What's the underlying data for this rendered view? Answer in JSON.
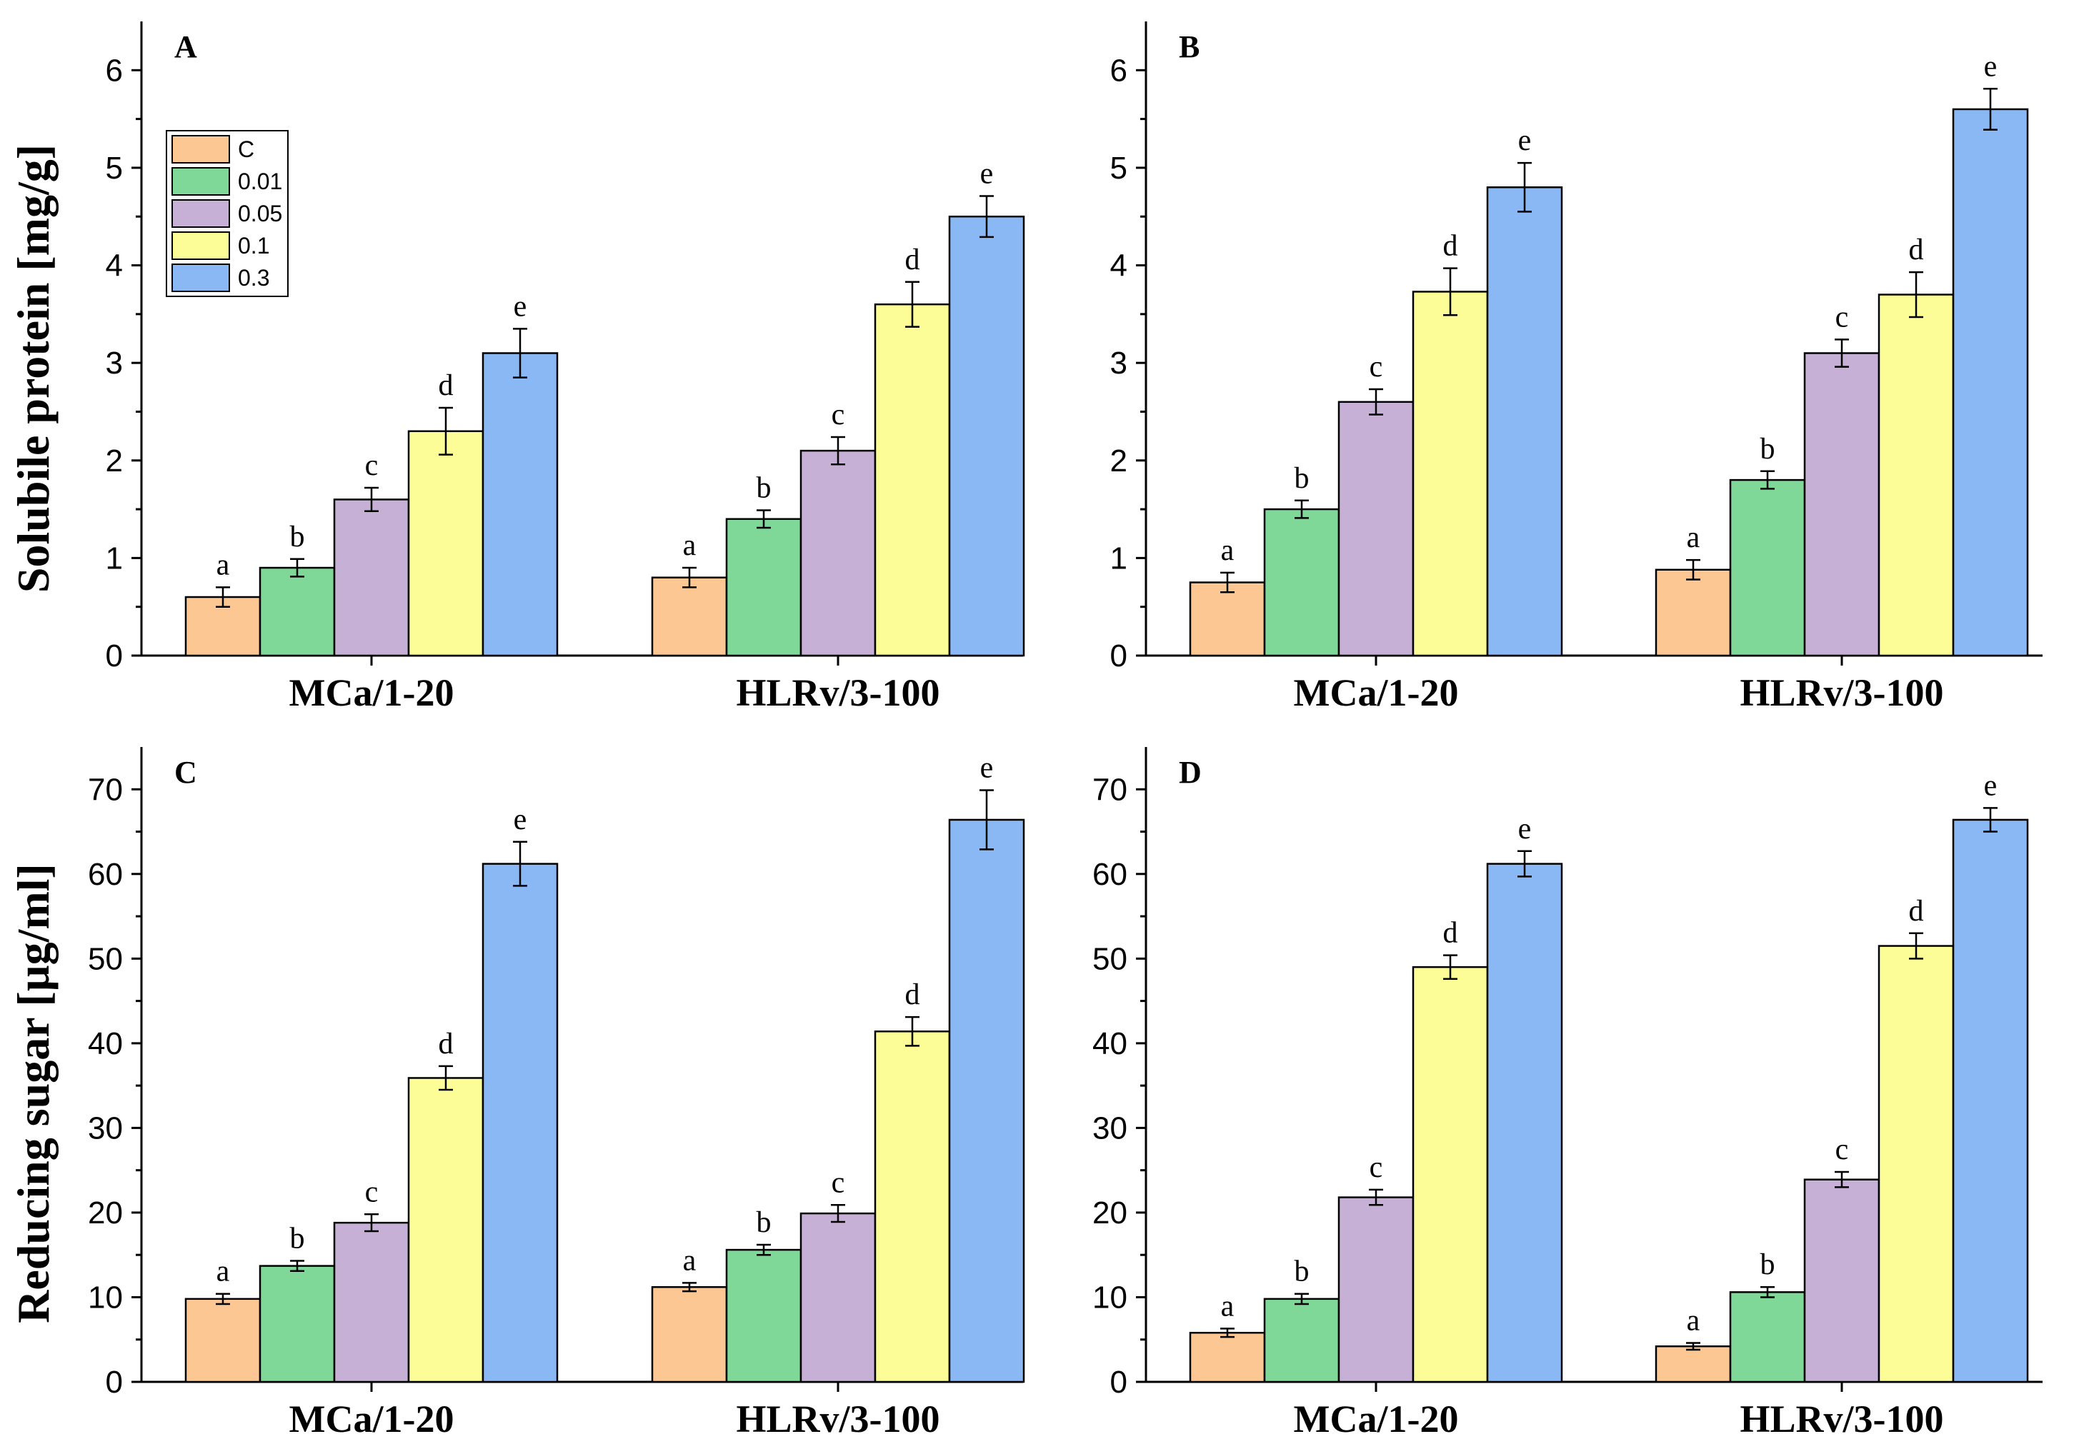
{
  "colors": {
    "C": "#fdc793",
    "0.01": "#7fd897",
    "0.05": "#c7b0d6",
    "0.1": "#fdfd98",
    "0.3": "#8ab8f5"
  },
  "legend": [
    "C",
    "0.01",
    "0.05",
    "0.1",
    "0.3"
  ],
  "ylabels": {
    "top": "Solubile protein [mg/g]",
    "bottom": "Reducing sugar [µg/ml]"
  },
  "chart_data": [
    {
      "panel": "A",
      "type": "bar",
      "ylabel": "Solubile protein [mg/g]",
      "ylim": [
        0,
        6.5
      ],
      "yticks": [
        0,
        1,
        2,
        3,
        4,
        5,
        6
      ],
      "categories": [
        "MCa/1-20",
        "HLRv/3-100"
      ],
      "series": [
        {
          "name": "C",
          "values": [
            0.6,
            0.8
          ],
          "errors": [
            0.1,
            0.1
          ],
          "letters": [
            "a",
            "a"
          ]
        },
        {
          "name": "0.01",
          "values": [
            0.9,
            1.4
          ],
          "errors": [
            0.09,
            0.09
          ],
          "letters": [
            "b",
            "b"
          ]
        },
        {
          "name": "0.05",
          "values": [
            1.6,
            2.1
          ],
          "errors": [
            0.12,
            0.14
          ],
          "letters": [
            "c",
            "c"
          ]
        },
        {
          "name": "0.1",
          "values": [
            2.3,
            3.6
          ],
          "errors": [
            0.24,
            0.23
          ],
          "letters": [
            "d",
            "d"
          ]
        },
        {
          "name": "0.3",
          "values": [
            3.1,
            4.5
          ],
          "errors": [
            0.25,
            0.21
          ],
          "letters": [
            "e",
            "e"
          ]
        }
      ]
    },
    {
      "panel": "B",
      "type": "bar",
      "ylabel": "Solubile protein [mg/g]",
      "ylim": [
        0,
        6.5
      ],
      "yticks": [
        0,
        1,
        2,
        3,
        4,
        5,
        6
      ],
      "categories": [
        "MCa/1-20",
        "HLRv/3-100"
      ],
      "series": [
        {
          "name": "C",
          "values": [
            0.75,
            0.88
          ],
          "errors": [
            0.1,
            0.1
          ],
          "letters": [
            "a",
            "a"
          ]
        },
        {
          "name": "0.01",
          "values": [
            1.5,
            1.8
          ],
          "errors": [
            0.09,
            0.09
          ],
          "letters": [
            "b",
            "b"
          ]
        },
        {
          "name": "0.05",
          "values": [
            2.6,
            3.1
          ],
          "errors": [
            0.13,
            0.14
          ],
          "letters": [
            "c",
            "c"
          ]
        },
        {
          "name": "0.1",
          "values": [
            3.73,
            3.7
          ],
          "errors": [
            0.24,
            0.23
          ],
          "letters": [
            "d",
            "d"
          ]
        },
        {
          "name": "0.3",
          "values": [
            4.8,
            5.6
          ],
          "errors": [
            0.25,
            0.21
          ],
          "letters": [
            "e",
            "e"
          ]
        }
      ]
    },
    {
      "panel": "C",
      "type": "bar",
      "ylabel": "Reducing sugar [µg/ml]",
      "ylim": [
        0,
        75
      ],
      "yticks": [
        0,
        10,
        20,
        30,
        40,
        50,
        60,
        70
      ],
      "categories": [
        "MCa/1-20",
        "HLRv/3-100"
      ],
      "series": [
        {
          "name": "C",
          "values": [
            9.8,
            11.2
          ],
          "errors": [
            0.6,
            0.5
          ],
          "letters": [
            "a",
            "a"
          ]
        },
        {
          "name": "0.01",
          "values": [
            13.7,
            15.6
          ],
          "errors": [
            0.6,
            0.6
          ],
          "letters": [
            "b",
            "b"
          ]
        },
        {
          "name": "0.05",
          "values": [
            18.8,
            19.9
          ],
          "errors": [
            1.0,
            1.0
          ],
          "letters": [
            "c",
            "c"
          ]
        },
        {
          "name": "0.1",
          "values": [
            35.9,
            41.4
          ],
          "errors": [
            1.4,
            1.7
          ],
          "letters": [
            "d",
            "d"
          ]
        },
        {
          "name": "0.3",
          "values": [
            61.2,
            66.4
          ],
          "errors": [
            2.6,
            3.5
          ],
          "letters": [
            "e",
            "e"
          ]
        }
      ]
    },
    {
      "panel": "D",
      "type": "bar",
      "ylabel": "Reducing sugar [µg/ml]",
      "ylim": [
        0,
        75
      ],
      "yticks": [
        0,
        10,
        20,
        30,
        40,
        50,
        60,
        70
      ],
      "categories": [
        "MCa/1-20",
        "HLRv/3-100"
      ],
      "series": [
        {
          "name": "C",
          "values": [
            5.8,
            4.2
          ],
          "errors": [
            0.5,
            0.4
          ],
          "letters": [
            "a",
            "a"
          ]
        },
        {
          "name": "0.01",
          "values": [
            9.8,
            10.6
          ],
          "errors": [
            0.6,
            0.6
          ],
          "letters": [
            "b",
            "b"
          ]
        },
        {
          "name": "0.05",
          "values": [
            21.8,
            23.9
          ],
          "errors": [
            0.9,
            0.9
          ],
          "letters": [
            "c",
            "c"
          ]
        },
        {
          "name": "0.1",
          "values": [
            49.0,
            51.5
          ],
          "errors": [
            1.4,
            1.5
          ],
          "letters": [
            "d",
            "d"
          ]
        },
        {
          "name": "0.3",
          "values": [
            61.2,
            66.4
          ],
          "errors": [
            1.5,
            1.4
          ],
          "letters": [
            "e",
            "e"
          ]
        }
      ]
    }
  ]
}
